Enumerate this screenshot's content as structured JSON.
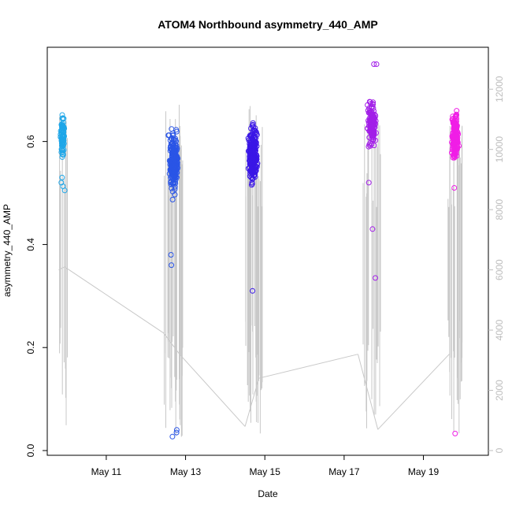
{
  "chart_data": {
    "type": "scatter",
    "title": "ATOM4 Northbound asymmetry_440_AMP",
    "xlabel": "Date",
    "ylabel": "asymmetry_440_AMP",
    "x_ticks": [
      "May 11",
      "May 13",
      "May 15",
      "May 17",
      "May 19"
    ],
    "y_ticks": [
      "0.0",
      "0.2",
      "0.4",
      "0.6"
    ],
    "y2_ticks": [
      "0",
      "2000",
      "4000",
      "6000",
      "8000",
      "10000",
      "12000"
    ],
    "x_range_days": [
      9.75,
      20.4
    ],
    "ylim": [
      0,
      0.76
    ],
    "y2lim": [
      0,
      13000
    ],
    "grid": false,
    "legend": "none",
    "colors": {
      "line": "#c8c8c8",
      "right_axis": "#bdbdbd",
      "clusters": [
        "#1ea6e8",
        "#2a55e6",
        "#3a16e6",
        "#a21ee8",
        "#f01ee6"
      ]
    },
    "clusters": [
      {
        "center_day": 9.9,
        "spread": 0.1,
        "n": 80,
        "ymin": 0.5,
        "ymax": 0.67,
        "ymean": 0.61,
        "outliers": [
          0.505,
          0.513,
          0.52,
          0.53
        ]
      },
      {
        "center_day": 12.7,
        "spread": 0.2,
        "n": 260,
        "ymin": 0.44,
        "ymax": 0.69,
        "ymean": 0.56,
        "outliers": [
          0.38,
          0.36,
          0.04,
          0.035,
          0.027
        ]
      },
      {
        "center_day": 14.7,
        "spread": 0.2,
        "n": 280,
        "ymin": 0.46,
        "ymax": 0.69,
        "ymean": 0.575,
        "outliers": [
          0.31
        ]
      },
      {
        "center_day": 17.7,
        "spread": 0.2,
        "n": 140,
        "ymin": 0.55,
        "ymax": 0.75,
        "ymean": 0.635,
        "outliers": [
          0.43,
          0.335,
          0.52,
          0.75,
          0.75
        ]
      },
      {
        "center_day": 19.8,
        "spread": 0.15,
        "n": 200,
        "ymin": 0.5,
        "ymax": 0.7,
        "ymean": 0.61,
        "outliers": [
          0.033,
          0.51
        ]
      }
    ],
    "series2_breakpoints": [
      {
        "day": 9.8,
        "y2": 6000
      },
      {
        "day": 9.95,
        "y2": 6100
      },
      {
        "day": 12.45,
        "y2": 3900
      },
      {
        "day": 12.85,
        "y2": 3200
      },
      {
        "day": 14.5,
        "y2": 800
      },
      {
        "day": 14.85,
        "y2": 2400
      },
      {
        "day": 17.35,
        "y2": 3200
      },
      {
        "day": 17.85,
        "y2": 700
      },
      {
        "day": 19.65,
        "y2": 3200
      }
    ]
  }
}
